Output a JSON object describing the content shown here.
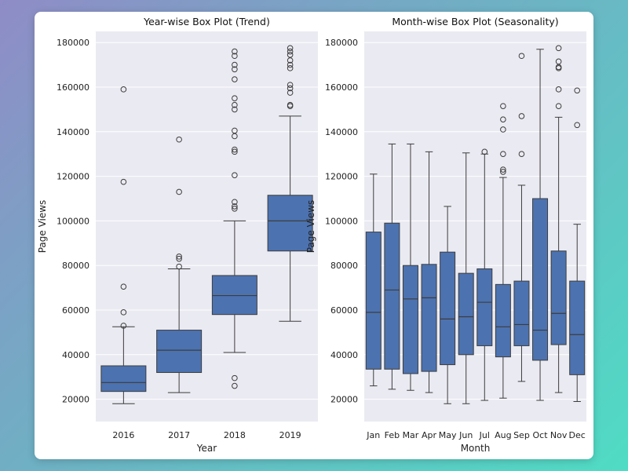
{
  "chart_data": [
    {
      "type": "box",
      "title": "Year-wise Box Plot (Trend)",
      "xlabel": "Year",
      "ylabel": "Page Views",
      "ylim": [
        10000,
        185000
      ],
      "yticks": [
        20000,
        40000,
        60000,
        80000,
        100000,
        120000,
        140000,
        160000,
        180000
      ],
      "color": "#4c72b0",
      "categories": [
        "2016",
        "2017",
        "2018",
        "2019"
      ],
      "boxes": [
        {
          "min": 18000,
          "q1": 23500,
          "median": 27500,
          "q3": 35000,
          "max": 52500,
          "outliers": [
            53000,
            59000,
            70500,
            117500,
            159000
          ]
        },
        {
          "min": 23000,
          "q1": 32000,
          "median": 42000,
          "q3": 51000,
          "max": 78500,
          "outliers": [
            79500,
            83000,
            84000,
            113000,
            136500
          ]
        },
        {
          "min": 41000,
          "q1": 58000,
          "median": 66500,
          "q3": 75500,
          "max": 100000,
          "outliers": [
            26000,
            29500,
            105500,
            106500,
            108500,
            120500,
            131000,
            132000,
            138000,
            140500,
            150000,
            152000,
            155000,
            163500,
            168000,
            170000,
            174000,
            176000
          ]
        },
        {
          "min": 55000,
          "q1": 86500,
          "median": 100000,
          "q3": 111500,
          "max": 147000,
          "outliers": [
            151500,
            152000,
            157500,
            159500,
            161000,
            168500,
            170000,
            172000,
            174500,
            176000,
            177500
          ]
        }
      ]
    },
    {
      "type": "box",
      "title": "Month-wise Box Plot (Seasonality)",
      "xlabel": "Month",
      "ylabel": "Page Views",
      "ylim": [
        10000,
        185000
      ],
      "yticks": [
        20000,
        40000,
        60000,
        80000,
        100000,
        120000,
        140000,
        160000,
        180000
      ],
      "color": "#4c72b0",
      "categories": [
        "Jan",
        "Feb",
        "Mar",
        "Apr",
        "May",
        "Jun",
        "Jul",
        "Aug",
        "Sep",
        "Oct",
        "Nov",
        "Dec"
      ],
      "boxes": [
        {
          "min": 26000,
          "q1": 33500,
          "median": 59000,
          "q3": 95000,
          "max": 121000,
          "outliers": []
        },
        {
          "min": 24500,
          "q1": 33500,
          "median": 69000,
          "q3": 99000,
          "max": 134500,
          "outliers": []
        },
        {
          "min": 24000,
          "q1": 31500,
          "median": 65000,
          "q3": 80000,
          "max": 134500,
          "outliers": []
        },
        {
          "min": 23000,
          "q1": 32500,
          "median": 65500,
          "q3": 80500,
          "max": 131000,
          "outliers": []
        },
        {
          "min": 18000,
          "q1": 35500,
          "median": 56000,
          "q3": 86000,
          "max": 106500,
          "outliers": []
        },
        {
          "min": 18000,
          "q1": 40000,
          "median": 57000,
          "q3": 76500,
          "max": 130500,
          "outliers": []
        },
        {
          "min": 19500,
          "q1": 44000,
          "median": 63500,
          "q3": 78500,
          "max": 130000,
          "outliers": [
            131000
          ]
        },
        {
          "min": 20500,
          "q1": 39000,
          "median": 52500,
          "q3": 71500,
          "max": 119500,
          "outliers": [
            122000,
            123000,
            130000,
            141000,
            145500,
            151500
          ]
        },
        {
          "min": 28000,
          "q1": 44000,
          "median": 53500,
          "q3": 73000,
          "max": 116000,
          "outliers": [
            130000,
            147000,
            174000
          ]
        },
        {
          "min": 19500,
          "q1": 37500,
          "median": 51000,
          "q3": 110000,
          "max": 177000,
          "outliers": []
        },
        {
          "min": 23000,
          "q1": 44500,
          "median": 58500,
          "q3": 86500,
          "max": 146500,
          "outliers": [
            151500,
            159000,
            168500,
            169000,
            171500,
            177500
          ]
        },
        {
          "min": 19000,
          "q1": 31000,
          "median": 49000,
          "q3": 73000,
          "max": 98500,
          "outliers": [
            143000,
            158500
          ]
        }
      ]
    }
  ]
}
